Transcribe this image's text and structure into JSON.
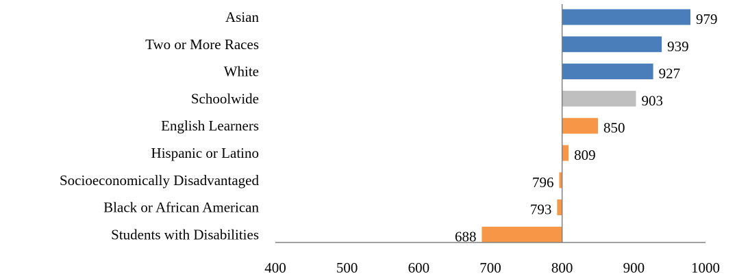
{
  "chart_data": {
    "type": "bar",
    "orientation": "horizontal",
    "title": "",
    "xlabel": "",
    "ylabel": "",
    "baseline": 800,
    "xlim": [
      400,
      1000
    ],
    "xticks": [
      400,
      500,
      600,
      700,
      800,
      900,
      1000
    ],
    "grid": false,
    "legend": "none",
    "categories": [
      "Asian",
      "Two or More Races",
      "White",
      "Schoolwide",
      "English Learners",
      "Hispanic or Latino",
      "Socioeconomically Disadvantaged",
      "Black or African American",
      "Students with Disabilities"
    ],
    "values": [
      979,
      939,
      927,
      903,
      850,
      809,
      796,
      793,
      688
    ],
    "bar_colors": [
      "#4a7ebb",
      "#4a7ebb",
      "#4a7ebb",
      "#bfbfbf",
      "#f79646",
      "#f79646",
      "#f79646",
      "#f79646",
      "#f79646"
    ]
  }
}
